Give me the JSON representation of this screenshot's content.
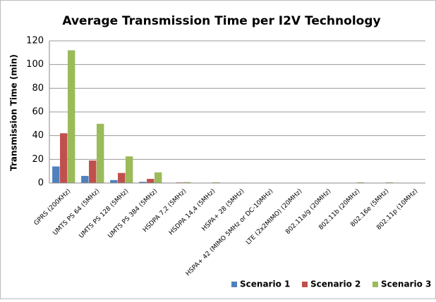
{
  "chart_data": {
    "type": "bar",
    "title": "Average Transmission  Time per I2V Technology",
    "y_label": "Transmission Time (min)",
    "categories": [
      "GPRS (200KHz)",
      "UMTS PS 64 (5MHz)",
      "UMTS PS 128 (5MHz)",
      "UMTS PS 384 (5MHz)",
      "HSDPA 7,2 (5MHz)",
      "HSDPA 14,4 (5MHz)",
      "HSPA+ 28 (5MHz)",
      "HSPA+ 42 (MIMO 5MHz or DC-10MHz)",
      "LTE (2x2MIMO) (20MHz)",
      "802.11a/g (20MHz)",
      "802.11b (20MHz)",
      "802.16e (5MHz)",
      "802.11p (10MHz)"
    ],
    "series": [
      {
        "name": "Scenario 1",
        "color": "#4f81bd",
        "values": [
          14,
          6,
          2.5,
          1,
          0.2,
          0.1,
          0.05,
          0.03,
          0.03,
          0.03,
          0.05,
          0.05,
          0.03
        ]
      },
      {
        "name": "Scenario 2",
        "color": "#c0504d",
        "values": [
          42,
          19,
          8.5,
          3.5,
          0.5,
          0.3,
          0.15,
          0.1,
          0.1,
          0.1,
          0.2,
          0.2,
          0.1
        ]
      },
      {
        "name": "Scenario 3",
        "color": "#9bbb59",
        "values": [
          112,
          50,
          22.5,
          9,
          0.8,
          0.6,
          0.3,
          0.2,
          0.15,
          0.15,
          0.6,
          0.6,
          0.2
        ]
      }
    ],
    "ylim": [
      0,
      120
    ],
    "yticks": [
      0,
      20,
      40,
      60,
      80,
      100,
      120
    ],
    "grid": true,
    "legend": "bottom-right"
  }
}
